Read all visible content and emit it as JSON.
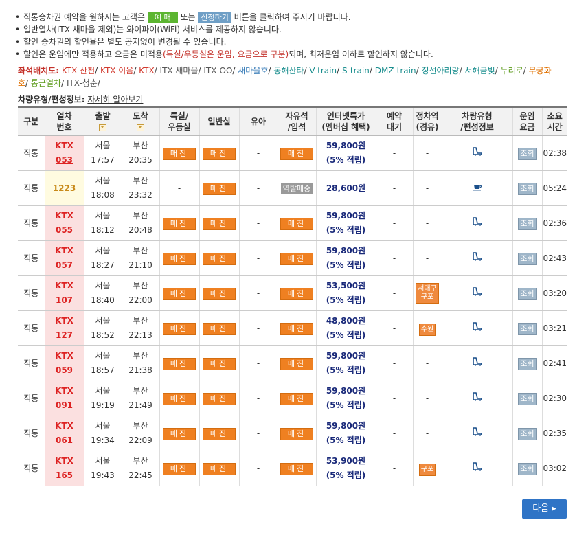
{
  "notices": {
    "line1": {
      "pre": "직통승차권 예약을 원하시는 고객은",
      "btn1": "예 매",
      "mid": "또는",
      "btn2": "신청하기",
      "post": "버튼을 클릭하여 주시기 바랍니다."
    },
    "line2": "일반열차(ITX-새마을 제외)는 와이파이(WiFi) 서비스를 제공하지 않습니다.",
    "line3": "할인 승차권의 할인율은 별도 공지없이 변경될 수 있습니다.",
    "line4": {
      "pre": "할인은 운임에만 적용하고 요금은 미적용",
      "red": "(특실/우등실은 운임, 요금으로 구분)",
      "post": "되며, 최저운임 이하로 할인하지 않습니다."
    }
  },
  "seatmap": {
    "label": "좌석배치도:",
    "links": [
      {
        "text": "KTX-산천",
        "color": "red"
      },
      {
        "text": "KTX-이음",
        "color": "red"
      },
      {
        "text": "KTX",
        "color": "red"
      },
      {
        "text": "ITX-새마을",
        "color": "gray"
      },
      {
        "text": "ITX-OO",
        "color": "gray"
      },
      {
        "text": "새마을호",
        "color": "blue"
      },
      {
        "text": "동해산타",
        "color": "teal"
      },
      {
        "text": "V-train",
        "color": "teal"
      },
      {
        "text": "S-train",
        "color": "teal"
      },
      {
        "text": "DMZ-train",
        "color": "teal"
      },
      {
        "text": "정선아리랑",
        "color": "teal"
      },
      {
        "text": "서해금빛",
        "color": "teal"
      },
      {
        "text": "누리로",
        "color": "green"
      },
      {
        "text": "무궁화호",
        "color": "orange"
      },
      {
        "text": "통근열차",
        "color": "green"
      },
      {
        "text": "ITX-청춘",
        "color": "gray"
      }
    ]
  },
  "typeinfo": {
    "label": "차량유형/편성정보:",
    "link": "자세히 알아보기"
  },
  "headers": {
    "type": "구분",
    "train_no": [
      "열차",
      "번호"
    ],
    "depart": "출발",
    "arrive": "도착",
    "special": [
      "특실/",
      "우등실"
    ],
    "general": "일반실",
    "infant": "유아",
    "standing": [
      "자유석",
      "/입석"
    ],
    "internet": [
      "인터넷특가",
      "(멤버십 혜택)"
    ],
    "reserve_wait": [
      "예약",
      "대기"
    ],
    "stops": [
      "정차역",
      "(경유)"
    ],
    "vehicle": [
      "차량유형",
      "/편성정보"
    ],
    "fare": [
      "운임",
      "요금"
    ],
    "duration": [
      "소요",
      "시간"
    ]
  },
  "buttons": {
    "book": "매진",
    "view": "조회",
    "station_sale": "역발매중",
    "next": "다음"
  },
  "rows": [
    {
      "type": "직통",
      "brand": "KTX",
      "no": "053",
      "dep_st": "서울",
      "dep_t": "17:57",
      "arr_st": "부산",
      "arr_t": "20:35",
      "special": "btn",
      "general": "btn",
      "infant": "-",
      "standing": "btn",
      "fare": "59,800원",
      "point": "(5% 적립)",
      "wait": "-",
      "stops": "-",
      "vehicle": "ktx-icon",
      "duration": "02:38",
      "kind": "ktx"
    },
    {
      "type": "직통",
      "brand": "",
      "no": "1223",
      "dep_st": "서울",
      "dep_t": "18:08",
      "arr_st": "부산",
      "arr_t": "23:32",
      "special": "-",
      "general": "btn",
      "infant": "-",
      "standing": "station",
      "fare": "28,600원",
      "point": "",
      "wait": "-",
      "stops": "-",
      "vehicle": "cafe-icon",
      "duration": "05:24",
      "kind": "gen"
    },
    {
      "type": "직통",
      "brand": "KTX",
      "no": "055",
      "dep_st": "서울",
      "dep_t": "18:12",
      "arr_st": "부산",
      "arr_t": "20:48",
      "special": "btn",
      "general": "btn",
      "infant": "-",
      "standing": "btn",
      "fare": "59,800원",
      "point": "(5% 적립)",
      "wait": "-",
      "stops": "-",
      "vehicle": "ktx-icon",
      "duration": "02:36",
      "kind": "ktx"
    },
    {
      "type": "직통",
      "brand": "KTX",
      "no": "057",
      "dep_st": "서울",
      "dep_t": "18:27",
      "arr_st": "부산",
      "arr_t": "21:10",
      "special": "btn",
      "general": "btn",
      "infant": "-",
      "standing": "btn",
      "fare": "59,800원",
      "point": "(5% 적립)",
      "wait": "-",
      "stops": "-",
      "vehicle": "ktx-icon",
      "duration": "02:43",
      "kind": "ktx"
    },
    {
      "type": "직통",
      "brand": "KTX",
      "no": "107",
      "dep_st": "서울",
      "dep_t": "18:40",
      "arr_st": "부산",
      "arr_t": "22:00",
      "special": "btn",
      "general": "btn",
      "infant": "-",
      "standing": "btn",
      "fare": "53,500원",
      "point": "(5% 적립)",
      "wait": "-",
      "stops": [
        "서대구",
        "구포"
      ],
      "vehicle": "ktx-icon",
      "duration": "03:20",
      "kind": "ktx"
    },
    {
      "type": "직통",
      "brand": "KTX",
      "no": "127",
      "dep_st": "서울",
      "dep_t": "18:52",
      "arr_st": "부산",
      "arr_t": "22:13",
      "special": "btn",
      "general": "btn",
      "infant": "-",
      "standing": "btn",
      "fare": "48,800원",
      "point": "(5% 적립)",
      "wait": "-",
      "stops": [
        "수원"
      ],
      "vehicle": "ktx-icon",
      "duration": "03:21",
      "kind": "ktx"
    },
    {
      "type": "직통",
      "brand": "KTX",
      "no": "059",
      "dep_st": "서울",
      "dep_t": "18:57",
      "arr_st": "부산",
      "arr_t": "21:38",
      "special": "btn",
      "general": "btn",
      "infant": "-",
      "standing": "btn",
      "fare": "59,800원",
      "point": "(5% 적립)",
      "wait": "-",
      "stops": "-",
      "vehicle": "ktx-icon",
      "duration": "02:41",
      "kind": "ktx"
    },
    {
      "type": "직통",
      "brand": "KTX",
      "no": "091",
      "dep_st": "서울",
      "dep_t": "19:19",
      "arr_st": "부산",
      "arr_t": "21:49",
      "special": "btn",
      "general": "btn",
      "infant": "-",
      "standing": "btn",
      "fare": "59,800원",
      "point": "(5% 적립)",
      "wait": "-",
      "stops": "-",
      "vehicle": "ktx-icon",
      "duration": "02:30",
      "kind": "ktx"
    },
    {
      "type": "직통",
      "brand": "KTX",
      "no": "061",
      "dep_st": "서울",
      "dep_t": "19:34",
      "arr_st": "부산",
      "arr_t": "22:09",
      "special": "btn",
      "general": "btn",
      "infant": "-",
      "standing": "btn",
      "fare": "59,800원",
      "point": "(5% 적립)",
      "wait": "-",
      "stops": "-",
      "vehicle": "ktx-icon",
      "duration": "02:35",
      "kind": "ktx"
    },
    {
      "type": "직통",
      "brand": "KTX",
      "no": "165",
      "dep_st": "서울",
      "dep_t": "19:43",
      "arr_st": "부산",
      "arr_t": "22:45",
      "special": "btn",
      "general": "btn",
      "infant": "-",
      "standing": "btn",
      "fare": "53,900원",
      "point": "(5% 적립)",
      "wait": "-",
      "stops": [
        "구포"
      ],
      "vehicle": "ktx-icon",
      "duration": "03:02",
      "kind": "ktx"
    }
  ]
}
